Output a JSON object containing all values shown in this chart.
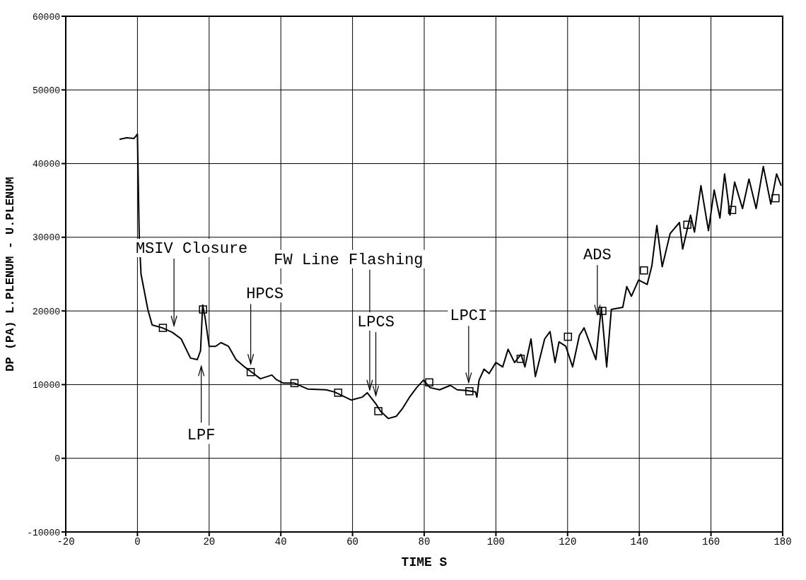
{
  "chart_data": {
    "type": "line",
    "xlabel": "TIME  S",
    "ylabel": "DP (PA)  L.PLENUM - U.PLENUM",
    "xlim": [
      -20,
      180
    ],
    "xticks": [
      -20,
      0,
      20,
      40,
      60,
      80,
      100,
      120,
      140,
      160,
      180
    ],
    "ylim": [
      -10000,
      60000
    ],
    "yticks": [
      -10000,
      0,
      10000,
      20000,
      30000,
      40000,
      50000,
      60000
    ],
    "grid": true,
    "line_style": "solid",
    "series": [
      {
        "type": "line",
        "color": "#000000",
        "marker": "none",
        "x": [
          -5,
          -3,
          -1,
          0,
          0.5,
          1,
          2.9,
          4.1,
          7,
          9.7,
          12.2,
          14.8,
          16.7,
          17.6,
          18.2,
          18.9,
          20,
          21.8,
          23.3,
          25.4,
          27.5,
          29.9,
          32.4,
          34.3,
          37.5,
          38.7,
          40.7,
          43.8,
          47.5,
          52.6,
          55,
          59.7,
          62.7,
          64.1,
          66.5,
          67.8,
          70,
          72.2,
          74,
          75.9,
          77.9,
          79.8,
          81.6,
          84.3,
          87.3,
          89.2,
          91.8,
          94.3,
          94.7,
          95.3,
          96.7,
          98.1,
          100,
          101.9,
          103.4,
          105.2,
          107,
          108.1,
          109.8,
          111,
          113.6,
          115.1,
          116.5,
          117.6,
          119.5,
          121.4,
          123.3,
          124.6,
          127.9,
          129.4,
          130.9,
          132.2,
          135.4,
          136.5,
          137.8,
          139.8,
          142.2,
          143.5,
          144.9,
          146.4,
          148.6,
          151.2,
          152.1,
          154.3,
          155.4,
          157.2,
          159.3,
          160.9,
          162.5,
          163.8,
          165.3,
          166.6,
          168.8,
          170.6,
          172.6,
          174.6,
          176.7,
          178.3,
          179.6
        ],
        "values": [
          43300,
          43500,
          43400,
          44000,
          30000,
          25000,
          20200,
          18100,
          17700,
          17100,
          16200,
          13600,
          13400,
          14600,
          20800,
          19000,
          15200,
          15200,
          15700,
          15200,
          13400,
          12400,
          11500,
          10800,
          11300,
          10700,
          10200,
          10200,
          9400,
          9300,
          9000,
          7900,
          8300,
          8900,
          7400,
          6400,
          5400,
          5700,
          6800,
          8300,
          9600,
          10600,
          9600,
          9300,
          9900,
          9300,
          9200,
          9000,
          8300,
          10600,
          12100,
          11500,
          13000,
          12400,
          14800,
          13000,
          14100,
          12400,
          16200,
          11100,
          16200,
          17200,
          13000,
          15800,
          15200,
          12400,
          16700,
          17700,
          13400,
          20500,
          12400,
          20200,
          20500,
          23300,
          22000,
          24200,
          23600,
          26100,
          31600,
          26000,
          30500,
          32000,
          28400,
          33000,
          30700,
          37000,
          30900,
          36400,
          32600,
          38600,
          33000,
          37500,
          33900,
          37900,
          33900,
          39600,
          34500,
          38600,
          37000
        ]
      },
      {
        "type": "scatter",
        "color": "#000000",
        "marker": "square",
        "x": [
          7.1,
          18.3,
          31.6,
          43.8,
          56,
          67.2,
          81.4,
          92.6,
          106.9,
          120.1,
          129.7,
          141.3,
          153.4,
          165.9,
          178
        ],
        "values": [
          17700,
          20200,
          11700,
          10200,
          8900,
          6400,
          10300,
          9100,
          13500,
          16500,
          20000,
          25500,
          31700,
          33700,
          35300
        ]
      }
    ],
    "annotations": [
      "MSIV Closure",
      "LPF",
      "HPCS",
      "FW Line Flashing",
      "LPCS",
      "LPCI",
      {
        "text": "ADS",
        "x": 128.3,
        "y": 19500
      }
    ]
  }
}
